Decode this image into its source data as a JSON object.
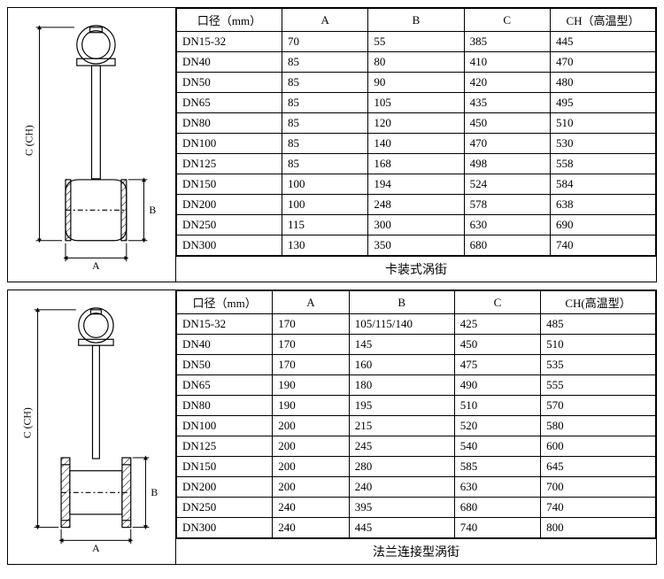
{
  "panel1": {
    "caption": "卡装式涡街",
    "diagram_labels": {
      "a": "A",
      "b": "B",
      "c": "C (CH)"
    },
    "columns": {
      "diameter": "口径（mm）",
      "a": "A",
      "b": "B",
      "c": "C",
      "ch": "CH（高温型）"
    },
    "rows": [
      {
        "d": "DN15-32",
        "a": "70",
        "b": "55",
        "c": "385",
        "ch": "445"
      },
      {
        "d": "DN40",
        "a": "85",
        "b": "80",
        "c": "410",
        "ch": "470"
      },
      {
        "d": "DN50",
        "a": "85",
        "b": "90",
        "c": "420",
        "ch": "480"
      },
      {
        "d": "DN65",
        "a": "85",
        "b": "105",
        "c": "435",
        "ch": "495"
      },
      {
        "d": "DN80",
        "a": "85",
        "b": "120",
        "c": "450",
        "ch": "510"
      },
      {
        "d": "DN100",
        "a": "85",
        "b": "140",
        "c": "470",
        "ch": "530"
      },
      {
        "d": "DN125",
        "a": "85",
        "b": "168",
        "c": "498",
        "ch": "558"
      },
      {
        "d": "DN150",
        "a": "100",
        "b": "194",
        "c": "524",
        "ch": "584"
      },
      {
        "d": "DN200",
        "a": "100",
        "b": "248",
        "c": "578",
        "ch": "638"
      },
      {
        "d": "DN250",
        "a": "115",
        "b": "300",
        "c": "630",
        "ch": "690"
      },
      {
        "d": "DN300",
        "a": "130",
        "b": "350",
        "c": "680",
        "ch": "740"
      }
    ]
  },
  "panel2": {
    "caption": "法兰连接型涡街",
    "diagram_labels": {
      "a": "A",
      "b": "B",
      "c": "C (CH)"
    },
    "columns": {
      "diameter": "口径（mm）",
      "a": "A",
      "b": "B",
      "c": "C",
      "ch": "CH(高温型）"
    },
    "rows": [
      {
        "d": "DN15-32",
        "a": "170",
        "b": "105/115/140",
        "c": "425",
        "ch": "485"
      },
      {
        "d": "DN40",
        "a": "170",
        "b": "145",
        "c": "450",
        "ch": "510"
      },
      {
        "d": "DN50",
        "a": "170",
        "b": "160",
        "c": "475",
        "ch": "535"
      },
      {
        "d": "DN65",
        "a": "190",
        "b": "180",
        "c": "490",
        "ch": "555"
      },
      {
        "d": "DN80",
        "a": "190",
        "b": "195",
        "c": "510",
        "ch": "570"
      },
      {
        "d": "DN100",
        "a": "200",
        "b": "215",
        "c": "520",
        "ch": "580"
      },
      {
        "d": "DN125",
        "a": "200",
        "b": "245",
        "c": "540",
        "ch": "600"
      },
      {
        "d": "DN150",
        "a": "200",
        "b": "280",
        "c": "585",
        "ch": "645"
      },
      {
        "d": "DN200",
        "a": "200",
        "b": "240",
        "c": "630",
        "ch": "700"
      },
      {
        "d": "DN250",
        "a": "240",
        "b": "395",
        "c": "680",
        "ch": "740"
      },
      {
        "d": "DN300",
        "a": "240",
        "b": "445",
        "c": "740",
        "ch": "800"
      }
    ]
  },
  "svg_style": {
    "stroke": "#000",
    "fill_hatch": "#000",
    "background": "#fff"
  }
}
